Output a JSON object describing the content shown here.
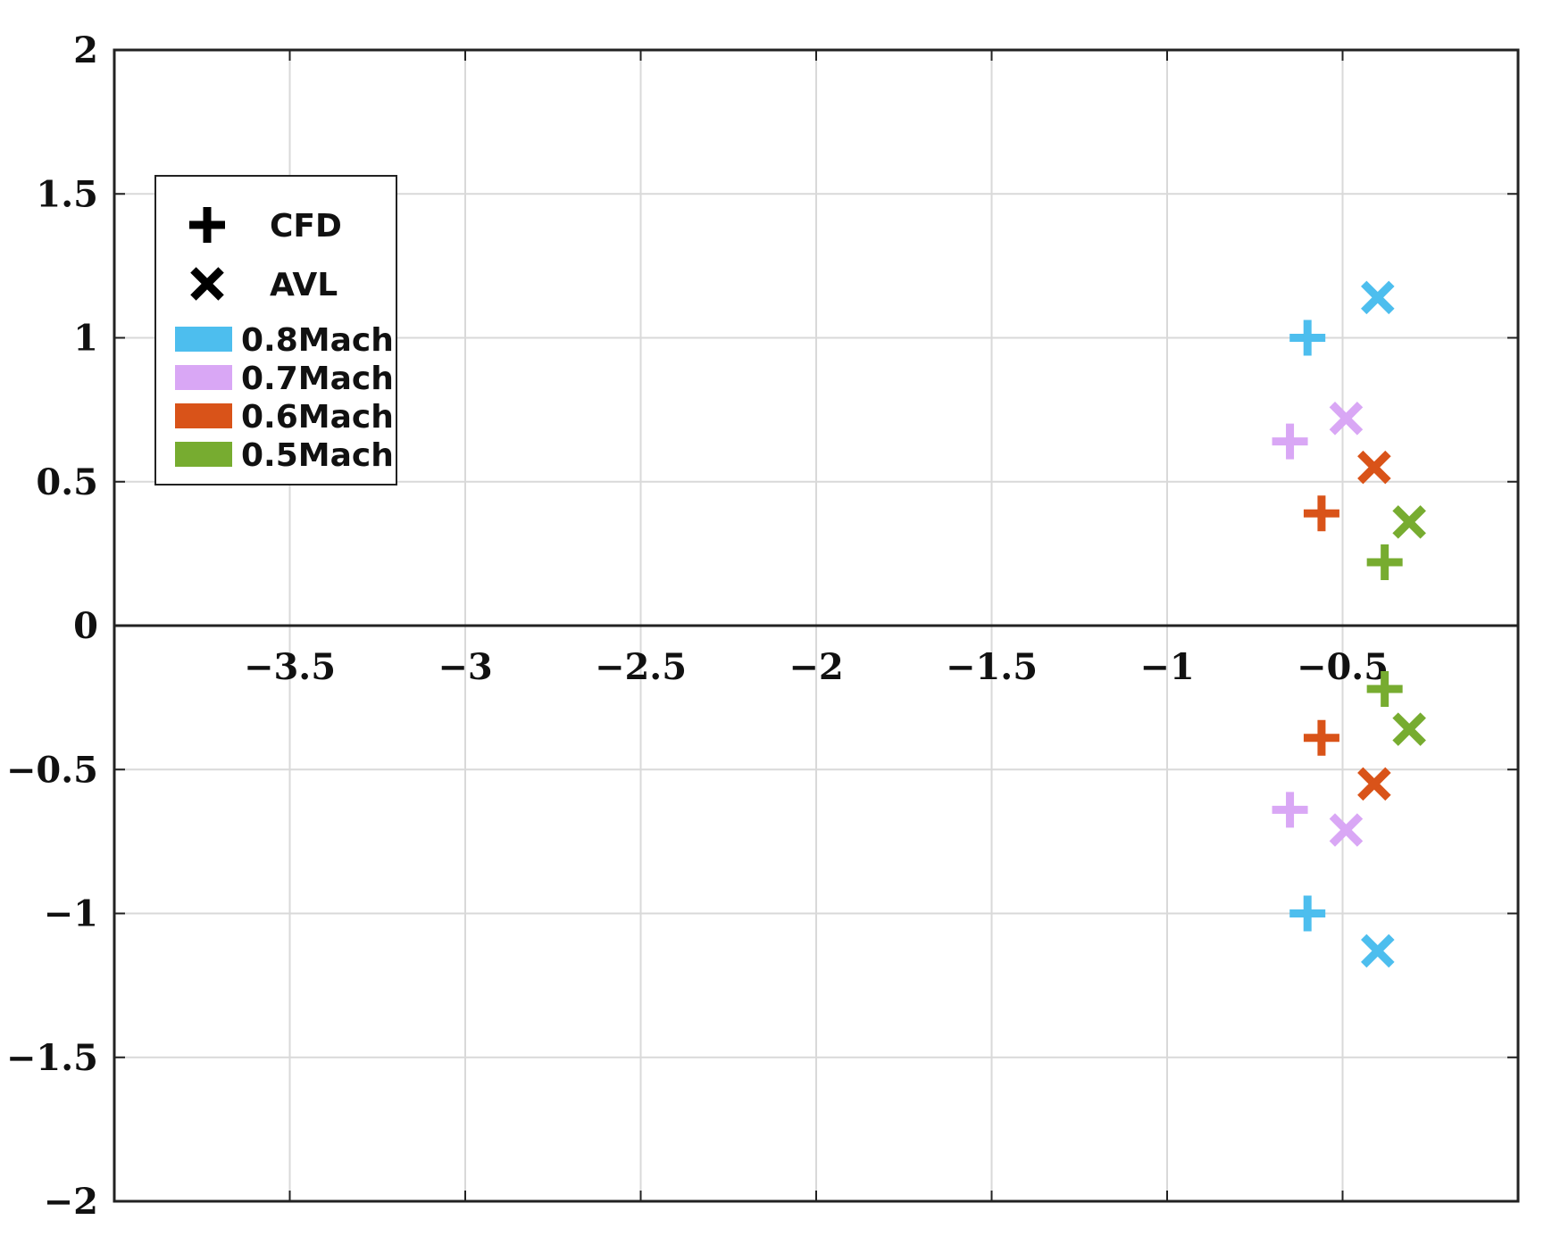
{
  "chart_data": {
    "type": "scatter",
    "title": "",
    "xlabel": "",
    "ylabel": "",
    "xlim": [
      -4,
      0
    ],
    "ylim": [
      -2,
      2
    ],
    "xticks": [
      -3.5,
      -3,
      -2.5,
      -2,
      -1.5,
      -1,
      -0.5
    ],
    "xtick_labels": [
      "−3.5",
      "−3",
      "−2.5",
      "−2",
      "−1.5",
      "−1",
      "−0.5"
    ],
    "yticks": [
      2,
      1.5,
      1,
      0.5,
      0,
      -0.5,
      -1,
      -1.5,
      -2
    ],
    "ytick_labels": [
      "2",
      "1.5",
      "1",
      "0.5",
      "0",
      "−0.5",
      "−1",
      "−1.5",
      "−2"
    ],
    "grid": true,
    "legend_position": "top-left",
    "legend": {
      "markers": [
        {
          "symbol": "plus",
          "label": "CFD"
        },
        {
          "symbol": "cross",
          "label": "AVL"
        }
      ],
      "colors": [
        {
          "label": "0.8Mach",
          "color": "#4dbeee"
        },
        {
          "label": "0.7Mach",
          "color": "#d9a7f5"
        },
        {
          "label": "0.6Mach",
          "color": "#d95319"
        },
        {
          "label": "0.5Mach",
          "color": "#77ac30"
        }
      ]
    },
    "series": [
      {
        "method": "CFD",
        "mach": "0.8Mach",
        "marker": "plus",
        "color": "#4dbeee",
        "points": [
          [
            -0.6,
            1.0
          ],
          [
            -0.6,
            -1.0
          ]
        ]
      },
      {
        "method": "AVL",
        "mach": "0.8Mach",
        "marker": "cross",
        "color": "#4dbeee",
        "points": [
          [
            -0.4,
            1.14
          ],
          [
            -0.4,
            -1.13
          ]
        ]
      },
      {
        "method": "CFD",
        "mach": "0.7Mach",
        "marker": "plus",
        "color": "#d9a7f5",
        "points": [
          [
            -0.65,
            0.64
          ],
          [
            -0.65,
            -0.64
          ]
        ]
      },
      {
        "method": "AVL",
        "mach": "0.7Mach",
        "marker": "cross",
        "color": "#d9a7f5",
        "points": [
          [
            -0.49,
            0.72
          ],
          [
            -0.49,
            -0.71
          ]
        ]
      },
      {
        "method": "CFD",
        "mach": "0.6Mach",
        "marker": "plus",
        "color": "#d95319",
        "points": [
          [
            -0.56,
            0.39
          ],
          [
            -0.56,
            -0.39
          ]
        ]
      },
      {
        "method": "AVL",
        "mach": "0.6Mach",
        "marker": "cross",
        "color": "#d95319",
        "points": [
          [
            -0.41,
            0.55
          ],
          [
            -0.41,
            -0.55
          ]
        ]
      },
      {
        "method": "CFD",
        "mach": "0.5Mach",
        "marker": "plus",
        "color": "#77ac30",
        "points": [
          [
            -0.38,
            0.22
          ],
          [
            -0.38,
            -0.22
          ]
        ]
      },
      {
        "method": "AVL",
        "mach": "0.5Mach",
        "marker": "cross",
        "color": "#77ac30",
        "points": [
          [
            -0.31,
            0.36
          ],
          [
            -0.31,
            -0.36
          ]
        ]
      }
    ]
  }
}
